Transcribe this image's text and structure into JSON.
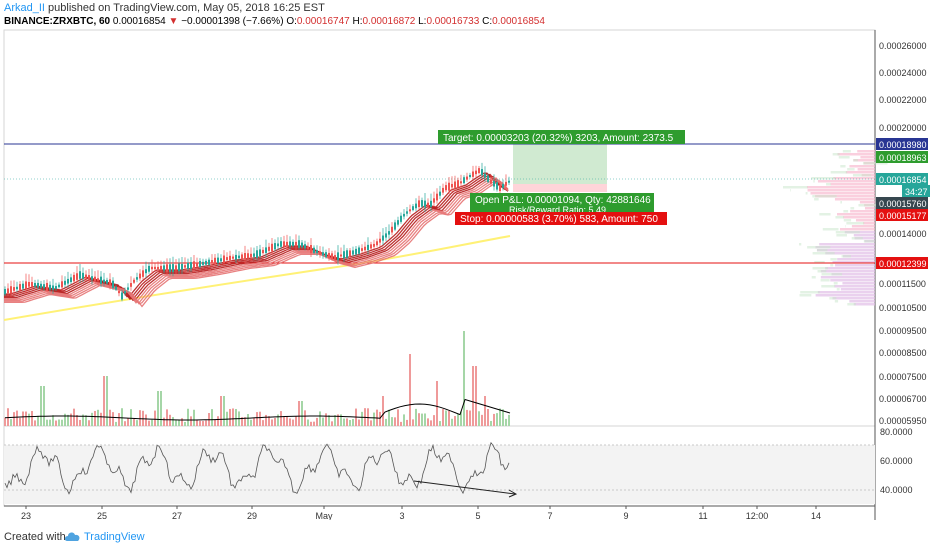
{
  "header": {
    "user": "Arkad_II",
    "published": " published on TradingView.com, May 05, 2018 16:25 EST",
    "symbol": "BINANCE:ZRXBTC, 60",
    "last": "0.00016854",
    "change": "−0.00001398 (−7.66%)",
    "open_label": "O:",
    "open": "0.00016747",
    "high_label": "H:",
    "high": "0.00016872",
    "low_label": "L:",
    "low": "0.00016733",
    "close_label": "C:",
    "close": "0.00016854"
  },
  "price_axis": [
    "0.00026000",
    "0.00024000",
    "0.00022000",
    "0.00020000",
    "0.00014000",
    "0.00011500",
    "0.00010500",
    "0.00009500",
    "0.00008500",
    "0.00007500",
    "0.00006700",
    "0.00005950"
  ],
  "price_tags": [
    {
      "label": "0.00018980",
      "color": "#283593"
    },
    {
      "label": "0.00018963",
      "color": "#2e9c2e"
    },
    {
      "label": "0.00016854",
      "color": "#26a69a"
    },
    {
      "label": "34:27",
      "color": "#26a69a"
    },
    {
      "label": "0.00015760",
      "color": "#37474f"
    },
    {
      "label": "0.00015177",
      "color": "#e41010"
    },
    {
      "label": "0.00012399",
      "color": "#e41010"
    }
  ],
  "rsi_axis": [
    "80.0000",
    "60.0000",
    "40.0000"
  ],
  "time_axis": [
    "23",
    "25",
    "27",
    "29",
    "May",
    "3",
    "5",
    "7",
    "9",
    "11",
    "12:00",
    "14"
  ],
  "position": {
    "target": "Target: 0.00003203 (20.32%) 3203, Amount: 2373.5",
    "open_pl": "Open P&L: 0.00001094, Qty: 42881646",
    "rr": "Risk/Reward Ratio: 5.49",
    "stop": "Stop: 0.00000583 (3.70%) 583, Amount: 750"
  },
  "footer": {
    "created": "Created with",
    "brand": "TradingView"
  },
  "colors": {
    "up": "#26a69a",
    "down": "#ef5350",
    "target": "#2e9c2e",
    "stop": "#e41010",
    "blue_line": "#283593",
    "red_line": "#e41010",
    "ma": "#ffeb3b"
  }
}
